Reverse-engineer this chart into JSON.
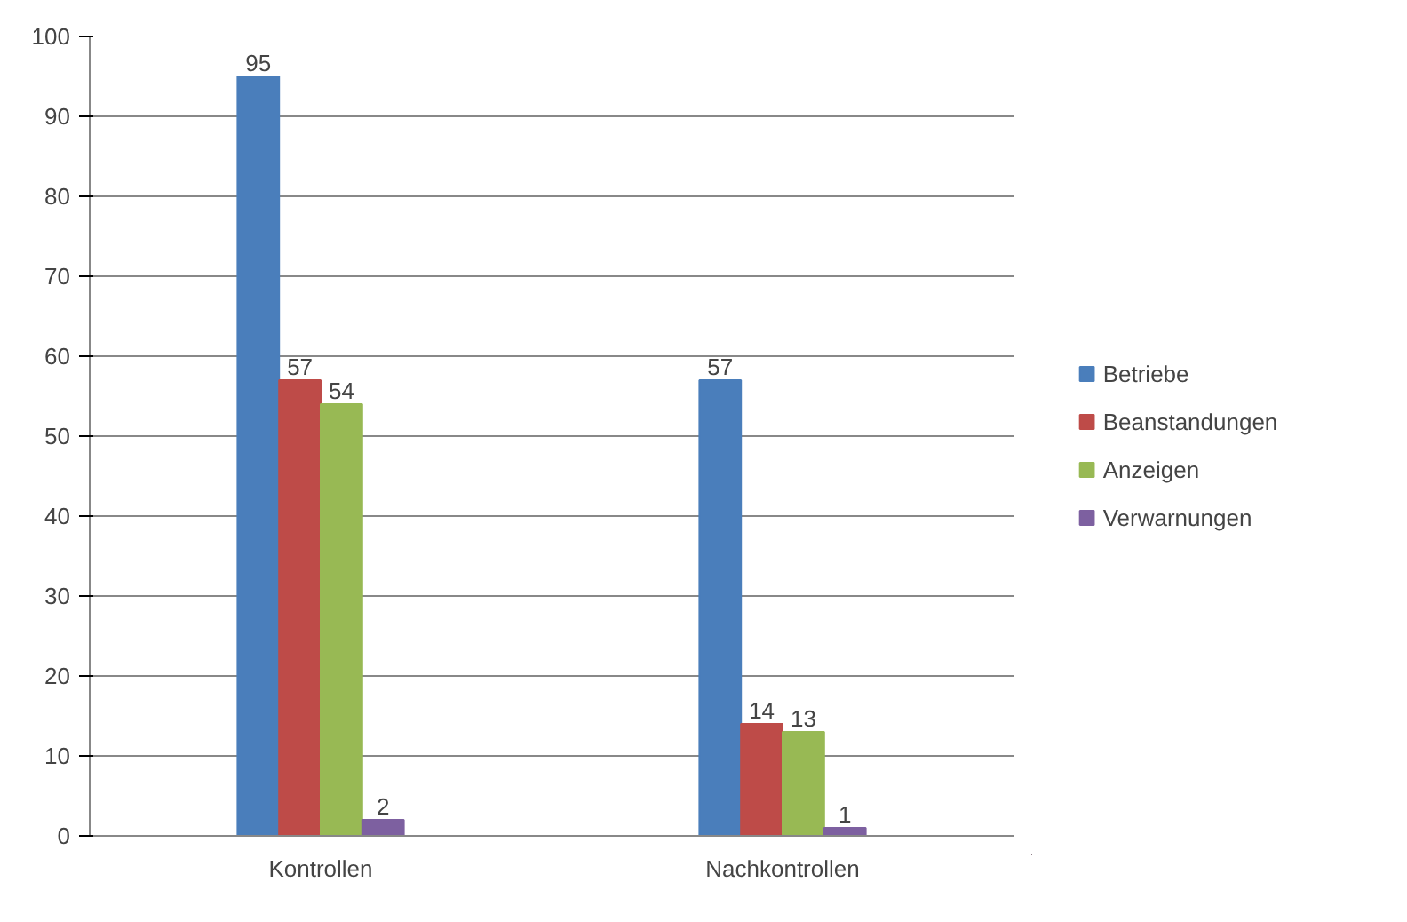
{
  "chart_data": {
    "type": "bar",
    "categories": [
      "Kontrollen",
      "Nachkontrollen"
    ],
    "series": [
      {
        "name": "Betriebe",
        "color": "#4a7ebb",
        "values": [
          95,
          57
        ]
      },
      {
        "name": "Beanstandungen",
        "color": "#be4b48",
        "values": [
          57,
          14
        ]
      },
      {
        "name": "Anzeigen",
        "color": "#98b954",
        "values": [
          54,
          13
        ]
      },
      {
        "name": "Verwarnungen",
        "color": "#7d60a0",
        "values": [
          2,
          1
        ]
      }
    ],
    "ylim": [
      0,
      100
    ],
    "yticks": [
      0,
      10,
      20,
      30,
      40,
      50,
      60,
      70,
      80,
      90,
      100
    ],
    "grid": "y",
    "legend": "right",
    "data_labels": true
  }
}
